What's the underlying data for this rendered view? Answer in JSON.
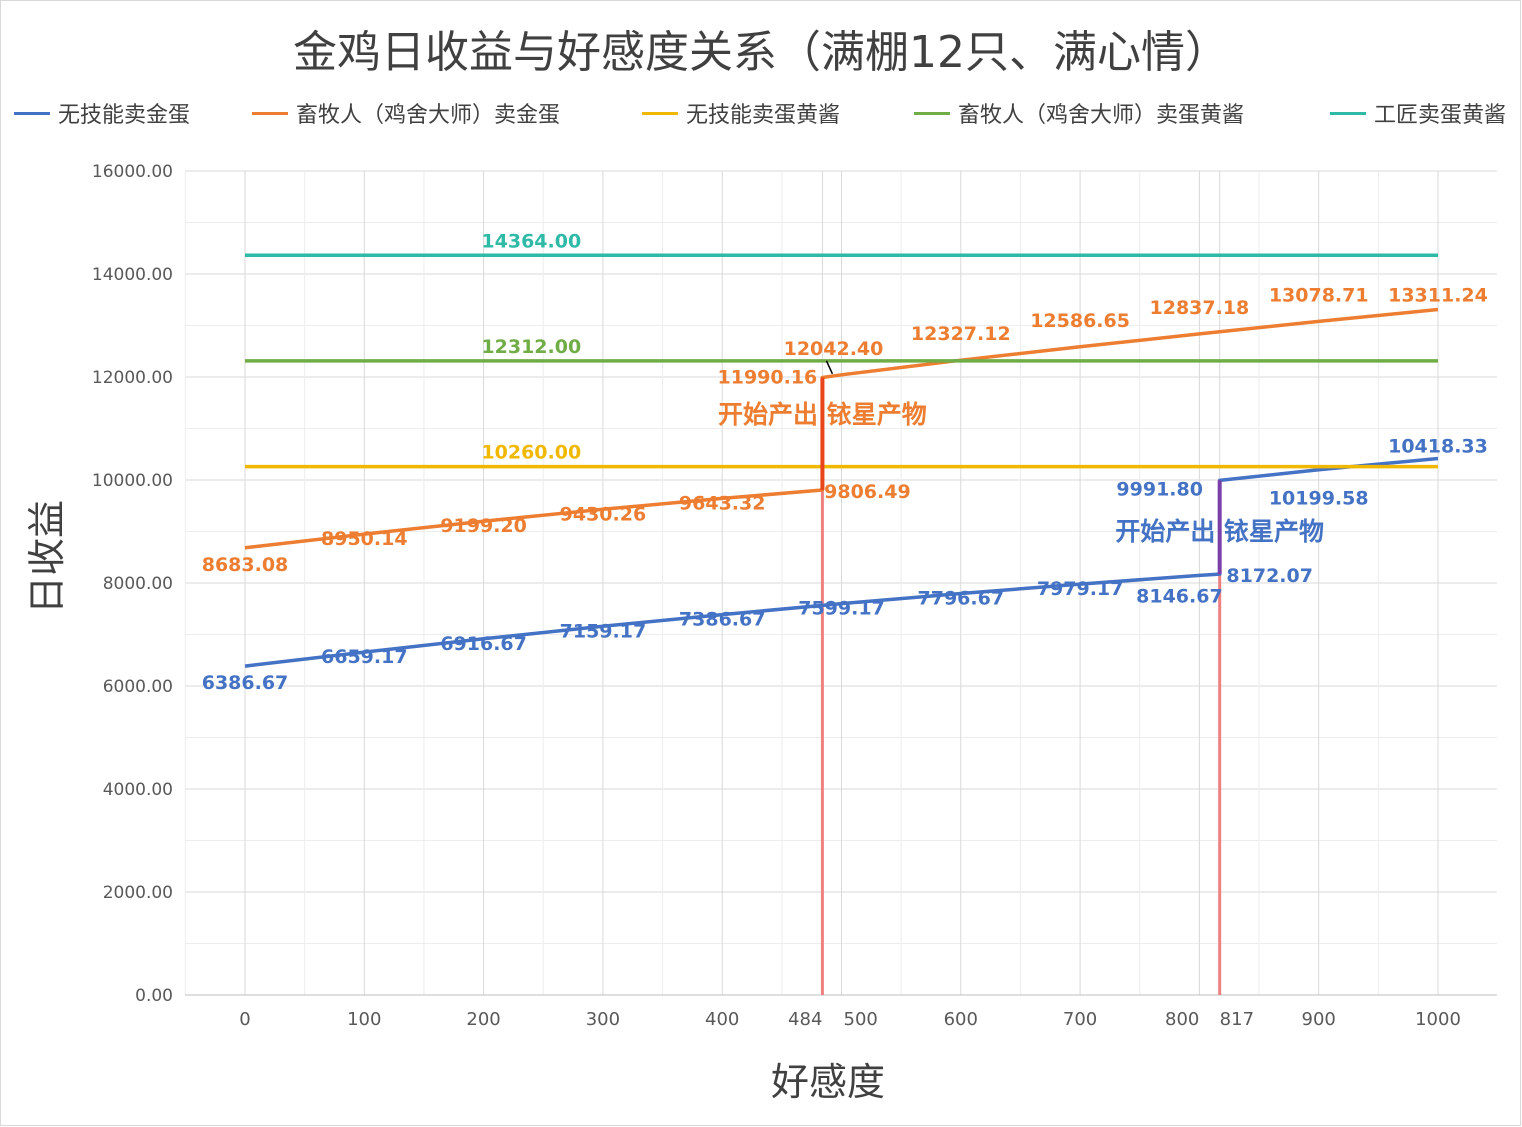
{
  "chart_data": {
    "type": "line",
    "title": "金鸡日收益与好感度关系（满棚12只、满心情）",
    "xlabel": "好感度",
    "ylabel": "日收益",
    "ylim": [
      0,
      16000
    ],
    "xlim": [
      0,
      1000
    ],
    "yticks": [
      "0.00",
      "2000.00",
      "4000.00",
      "6000.00",
      "8000.00",
      "10000.00",
      "12000.00",
      "14000.00",
      "16000.00"
    ],
    "xticks": [
      {
        "value": 0,
        "label": "0"
      },
      {
        "value": 100,
        "label": "100"
      },
      {
        "value": 200,
        "label": "200"
      },
      {
        "value": 300,
        "label": "300"
      },
      {
        "value": 400,
        "label": "400"
      },
      {
        "value": 484,
        "label": "484"
      },
      {
        "value": 500,
        "label": "500"
      },
      {
        "value": 600,
        "label": "600"
      },
      {
        "value": 700,
        "label": "700"
      },
      {
        "value": 800,
        "label": "800"
      },
      {
        "value": 817,
        "label": "817"
      },
      {
        "value": 900,
        "label": "900"
      },
      {
        "value": 1000,
        "label": "1000"
      }
    ],
    "grid": true,
    "legend_position": "top",
    "series": [
      {
        "name": "无技能卖金蛋",
        "color": "#4472c4",
        "x": [
          0,
          100,
          200,
          300,
          400,
          500,
          600,
          700,
          800,
          817,
          817,
          900,
          1000
        ],
        "values": [
          6386.67,
          6659.17,
          6916.67,
          7159.17,
          7386.67,
          7599.17,
          7796.67,
          7979.17,
          8146.67,
          8172.07,
          9991.8,
          10199.58,
          10418.33
        ],
        "labels": [
          "6386.67",
          "6659.17",
          "6916.67",
          "7159.17",
          "7386.67",
          "7599.17",
          "7796.67",
          "7979.17",
          "8146.67",
          "8172.07",
          "9991.80",
          "10199.58",
          "10418.33"
        ]
      },
      {
        "name": "畜牧人（鸡舍大师）卖金蛋",
        "color": "#ed7d31",
        "x": [
          0,
          100,
          200,
          300,
          400,
          484,
          484,
          500,
          600,
          700,
          800,
          900,
          1000
        ],
        "values": [
          8683.08,
          8950.14,
          9199.2,
          9430.26,
          9643.32,
          9806.49,
          11990.16,
          12042.4,
          12327.12,
          12586.65,
          12837.18,
          13078.71,
          13311.24
        ],
        "labels": [
          "8683.08",
          "8950.14",
          "9199.20",
          "9430.26",
          "9643.32",
          "9806.49",
          "11990.16",
          "12042.40",
          "12327.12",
          "12586.65",
          "12837.18",
          "13078.71",
          "13311.24"
        ]
      },
      {
        "name": "无技能卖蛋黄酱",
        "color": "#f0b800",
        "x": [
          0,
          1000
        ],
        "values": [
          10260,
          10260
        ],
        "labels": [
          "10260.00"
        ]
      },
      {
        "name": "畜牧人（鸡舍大师）卖蛋黄酱",
        "color": "#70ad47",
        "x": [
          0,
          1000
        ],
        "values": [
          12312,
          12312
        ],
        "labels": [
          "12312.00"
        ]
      },
      {
        "name": "工匠卖蛋黄酱",
        "color": "#2ebaa6",
        "x": [
          0,
          1000
        ],
        "values": [
          14364,
          14364
        ],
        "labels": [
          "14364.00"
        ]
      }
    ],
    "annotations": [
      {
        "text": "开始产出 铱星产物",
        "color": "#ed7d31",
        "x": 484
      },
      {
        "text": "开始产出 铱星产物",
        "color": "#4472c4",
        "x": 817
      }
    ]
  }
}
